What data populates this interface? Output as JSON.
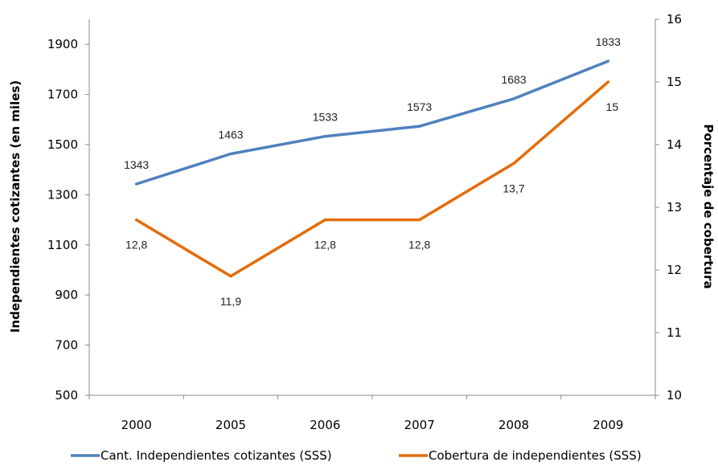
{
  "chart_data": {
    "type": "line",
    "categories": [
      "2000",
      "2005",
      "2006",
      "2007",
      "2008",
      "2009"
    ],
    "series": [
      {
        "name": "Cant. Independientes cotizantes (SSS)",
        "axis": "left",
        "color": "#4F81BD",
        "values": [
          1343,
          1463,
          1533,
          1573,
          1683,
          1833
        ],
        "labels": [
          "1343",
          "1463",
          "1533",
          "1573",
          "1683",
          "1833"
        ]
      },
      {
        "name": "Cobertura de independientes (SSS)",
        "axis": "right",
        "color": "#E46C0A",
        "values": [
          12.8,
          11.9,
          12.8,
          12.8,
          13.7,
          15
        ],
        "labels": [
          "12,8",
          "11,9",
          "12,8",
          "12,8",
          "13,7",
          "15"
        ]
      }
    ],
    "ylabel": "Independientes cotizantes (en miles)",
    "y2label": "Porcentaje de cobertura",
    "ylim": [
      500,
      2000
    ],
    "yticks": [
      "500",
      "700",
      "900",
      "1100",
      "1300",
      "1500",
      "1700",
      "1900"
    ],
    "y2lim": [
      10,
      16
    ],
    "y2ticks": [
      "10",
      "11",
      "12",
      "13",
      "14",
      "15",
      "16"
    ],
    "grid": false,
    "legend": "bottom"
  }
}
